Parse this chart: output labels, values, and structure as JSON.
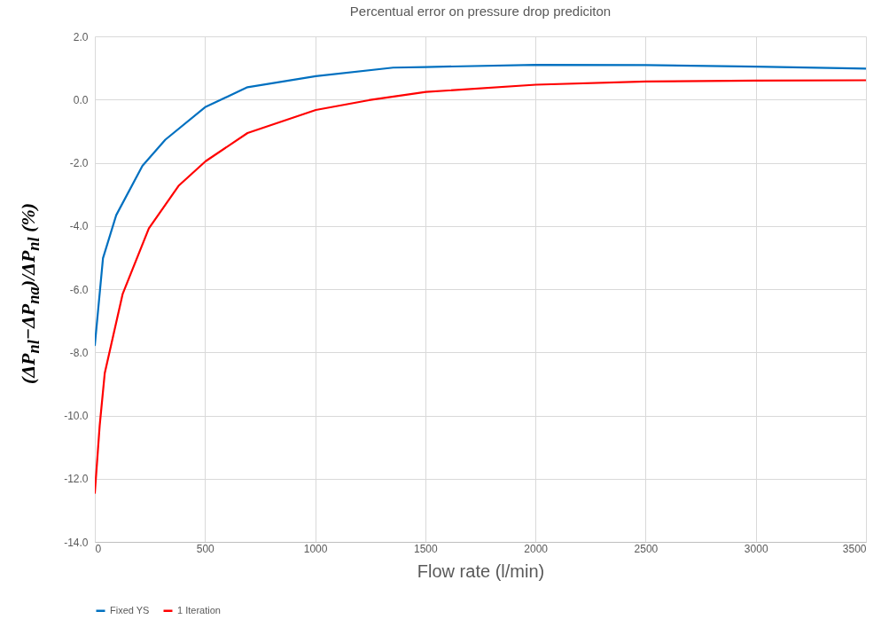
{
  "chart_data": {
    "type": "line",
    "title": "Percentual error on pressure drop prediciton",
    "xlabel": "Flow rate (l/min)",
    "ylabel": "(ΔP$_{nl}$−ΔP$_{na}$)/ΔP$_{nl}$ (%)",
    "series": [
      {
        "name": "Fixed YS",
        "color": "#0070c0",
        "x": [
          0,
          37,
          97,
          216,
          320,
          503,
          693,
          1003,
          1354,
          1500,
          2000,
          2500,
          3000,
          3500
        ],
        "values": [
          -7.77,
          -5.02,
          -3.66,
          -2.1,
          -1.27,
          -0.23,
          0.39,
          0.74,
          1.01,
          1.03,
          1.1,
          1.09,
          1.04,
          0.98
        ]
      },
      {
        "name": "1 Iteration",
        "color": "#ff0000",
        "x": [
          0,
          22,
          45,
          126,
          245,
          380,
          503,
          693,
          1003,
          1244,
          1503,
          2002,
          2502,
          3000,
          3500
        ],
        "values": [
          -12.45,
          -10.32,
          -8.66,
          -6.16,
          -4.08,
          -2.73,
          -1.95,
          -1.06,
          -0.33,
          -0.02,
          0.24,
          0.47,
          0.57,
          0.6,
          0.61
        ]
      }
    ],
    "xlim": [
      0,
      3500
    ],
    "xticks": [
      0,
      500,
      1000,
      1500,
      2000,
      2500,
      3000,
      3500
    ],
    "ylim": [
      -14,
      2
    ],
    "yticks": [
      {
        "value": -14,
        "label": "-14.0"
      },
      {
        "value": -12,
        "label": "-12.0"
      },
      {
        "value": -10,
        "label": "-10.0"
      },
      {
        "value": -8,
        "label": "-8.0"
      },
      {
        "value": -6,
        "label": "-6.0"
      },
      {
        "value": -4,
        "label": "-4.0"
      },
      {
        "value": -2,
        "label": "-2.0"
      },
      {
        "value": 0,
        "label": "0.0"
      },
      {
        "value": 2,
        "label": "2.0"
      }
    ],
    "grid": true,
    "legend": "bottom",
    "marker": "none",
    "line_style": "solid"
  }
}
